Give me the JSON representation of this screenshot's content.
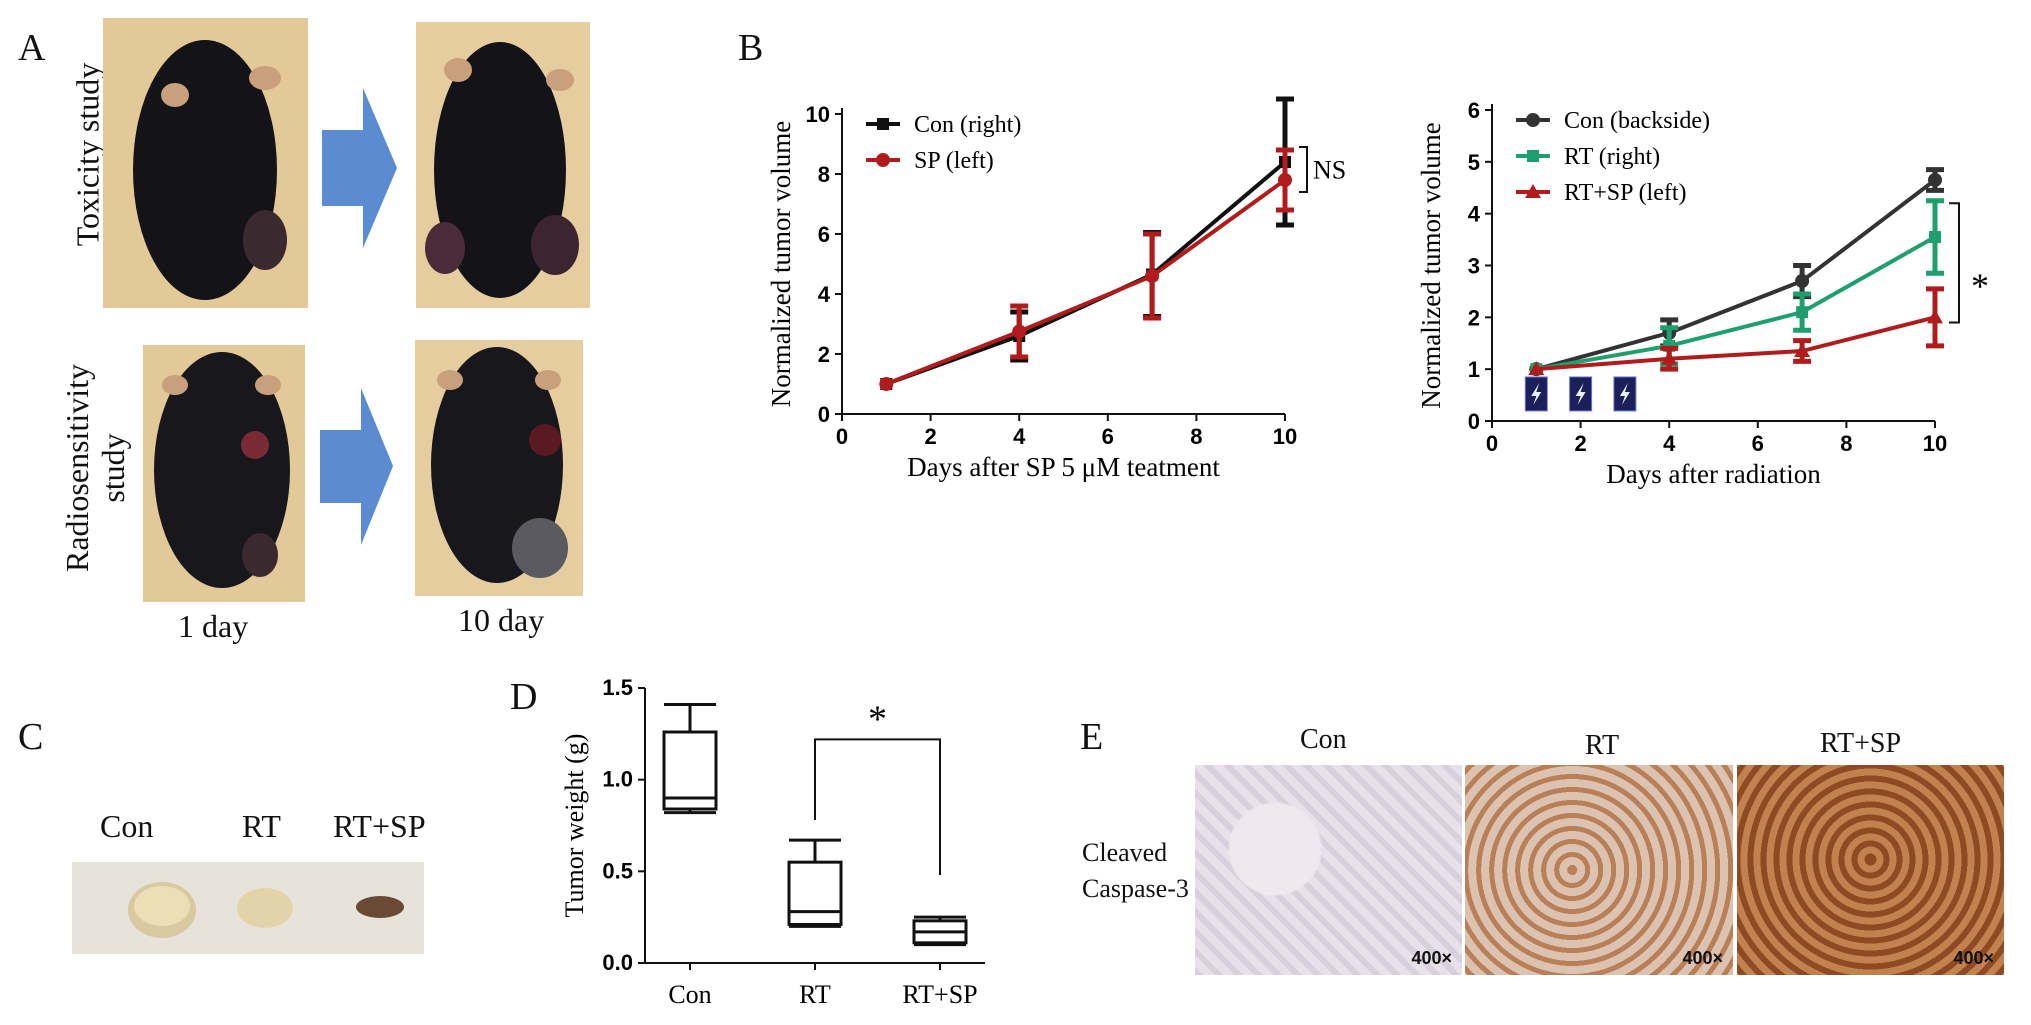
{
  "panels": {
    "A": {
      "label": "A",
      "row_labels": [
        "Toxicity study",
        "Radiosensitivity\nstudy"
      ],
      "col_labels": [
        "1 day",
        "10 day"
      ]
    },
    "B": {
      "label": "B"
    },
    "C": {
      "label": "C",
      "labels": [
        "Con",
        "RT",
        "RT+SP"
      ]
    },
    "D": {
      "label": "D"
    },
    "E": {
      "label": "E",
      "col_labels": [
        "Con",
        "RT",
        "RT+SP"
      ],
      "row_label": "Cleaved\nCaspase-3",
      "magnification": "400×"
    }
  },
  "colors": {
    "black": "#111111",
    "dark_red": "#b01c1c",
    "green": "#1f9e6e",
    "dark_gray": "#333333",
    "arrow_blue": "#5b8bd0"
  },
  "chart_data": [
    {
      "id": "B-left",
      "type": "line",
      "xlabel": "Days after SP 5 μM teatment",
      "ylabel": "Normalized tumor volume",
      "xlim": [
        0,
        10
      ],
      "ylim": [
        0,
        10
      ],
      "xticks": [
        0,
        2,
        4,
        6,
        8,
        10
      ],
      "yticks": [
        0,
        2,
        4,
        6,
        8,
        10
      ],
      "x": [
        1,
        4,
        7,
        10
      ],
      "series": [
        {
          "name": "Con (right)",
          "color": "#111111",
          "marker": "square",
          "values": [
            1.0,
            2.6,
            4.65,
            8.4
          ],
          "err": [
            0,
            0.8,
            1.4,
            2.1
          ]
        },
        {
          "name": "SP (left)",
          "color": "#b01c1c",
          "marker": "circle",
          "values": [
            1.0,
            2.75,
            4.6,
            7.8
          ],
          "err": [
            0,
            0.85,
            1.4,
            1.0
          ]
        }
      ],
      "annotations": [
        "NS"
      ],
      "legend": "top-left"
    },
    {
      "id": "B-right",
      "type": "line",
      "xlabel": "Days after radiation",
      "ylabel": "Normalized tumor volume",
      "xlim": [
        0,
        10
      ],
      "ylim": [
        0,
        6
      ],
      "xticks": [
        0,
        2,
        4,
        6,
        8,
        10
      ],
      "yticks": [
        0,
        1,
        2,
        3,
        4,
        5,
        6
      ],
      "x": [
        1,
        4,
        7,
        10
      ],
      "series": [
        {
          "name": "Con (backside)",
          "color": "#333333",
          "marker": "circle",
          "values": [
            1.0,
            1.7,
            2.7,
            4.65
          ],
          "err": [
            0,
            0.25,
            0.3,
            0.2
          ]
        },
        {
          "name": "RT (right)",
          "color": "#1f9e6e",
          "marker": "square",
          "values": [
            1.0,
            1.45,
            2.1,
            3.55
          ],
          "err": [
            0,
            0.35,
            0.35,
            0.7
          ]
        },
        {
          "name": "RT+SP (left)",
          "color": "#b01c1c",
          "marker": "triangle",
          "values": [
            1.0,
            1.2,
            1.35,
            2.0
          ],
          "err": [
            0,
            0.2,
            0.2,
            0.55
          ]
        }
      ],
      "radiation_days": [
        1,
        2,
        3
      ],
      "annotations": [
        "*"
      ],
      "legend": "top-left"
    },
    {
      "id": "D",
      "type": "box",
      "ylabel": "Tumor weight (g)",
      "categories": [
        "Con",
        "RT",
        "RT+SP"
      ],
      "ylim": [
        0,
        1.5
      ],
      "yticks": [
        0.0,
        0.5,
        1.0,
        1.5
      ],
      "boxes": [
        {
          "min": 0.82,
          "q1": 0.84,
          "median": 0.9,
          "q3": 1.26,
          "max": 1.41
        },
        {
          "min": 0.2,
          "q1": 0.21,
          "median": 0.28,
          "q3": 0.55,
          "max": 0.67
        },
        {
          "min": 0.1,
          "q1": 0.11,
          "median": 0.17,
          "q3": 0.23,
          "max": 0.25
        }
      ],
      "annotations": [
        "*"
      ]
    }
  ]
}
